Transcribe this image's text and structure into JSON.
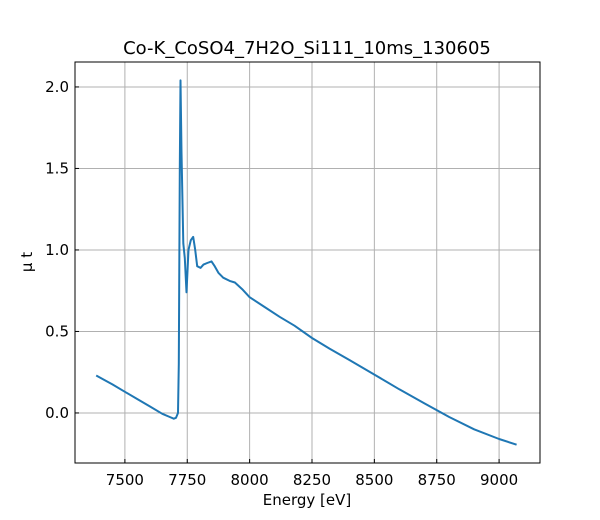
{
  "chart_data": {
    "type": "line",
    "title": "Co-K_CoSO4_7H2O_Si111_10ms_130605",
    "xlabel": "Energy [eV]",
    "ylabel": "μ t",
    "xlim": [
      7300,
      9164
    ],
    "ylim": [
      -0.307,
      2.153
    ],
    "grid": true,
    "xticks": [
      7500,
      7750,
      8000,
      8250,
      8500,
      8750,
      9000
    ],
    "xtick_labels": [
      "7500",
      "7750",
      "8000",
      "8250",
      "8500",
      "8750",
      "9000"
    ],
    "yticks": [
      0.0,
      0.5,
      1.0,
      1.5,
      2.0
    ],
    "ytick_labels": [
      "0.0",
      "0.5",
      "1.0",
      "1.5",
      "2.0"
    ],
    "series": [
      {
        "name": "mu_t",
        "color": "#1f77b4",
        "x": [
          7385,
          7450,
          7500,
          7550,
          7600,
          7650,
          7680,
          7696,
          7705,
          7713,
          7716,
          7720,
          7723,
          7727,
          7734,
          7740,
          7747,
          7755,
          7764,
          7774,
          7782,
          7790,
          7803,
          7815,
          7830,
          7847,
          7860,
          7875,
          7894,
          7920,
          7941,
          7970,
          8000,
          8060,
          8120,
          8180,
          8250,
          8320,
          8400,
          8500,
          8600,
          8700,
          8800,
          8900,
          9000,
          9070
        ],
        "y": [
          0.23,
          0.175,
          0.13,
          0.085,
          0.04,
          -0.005,
          -0.025,
          -0.035,
          -0.03,
          0.0,
          0.3,
          1.5,
          2.04,
          1.6,
          1.04,
          0.95,
          0.74,
          1.0,
          1.06,
          1.08,
          1.0,
          0.9,
          0.89,
          0.91,
          0.92,
          0.93,
          0.9,
          0.86,
          0.83,
          0.81,
          0.8,
          0.76,
          0.71,
          0.65,
          0.59,
          0.535,
          0.46,
          0.395,
          0.325,
          0.235,
          0.145,
          0.06,
          -0.025,
          -0.1,
          -0.16,
          -0.195
        ]
      }
    ]
  }
}
